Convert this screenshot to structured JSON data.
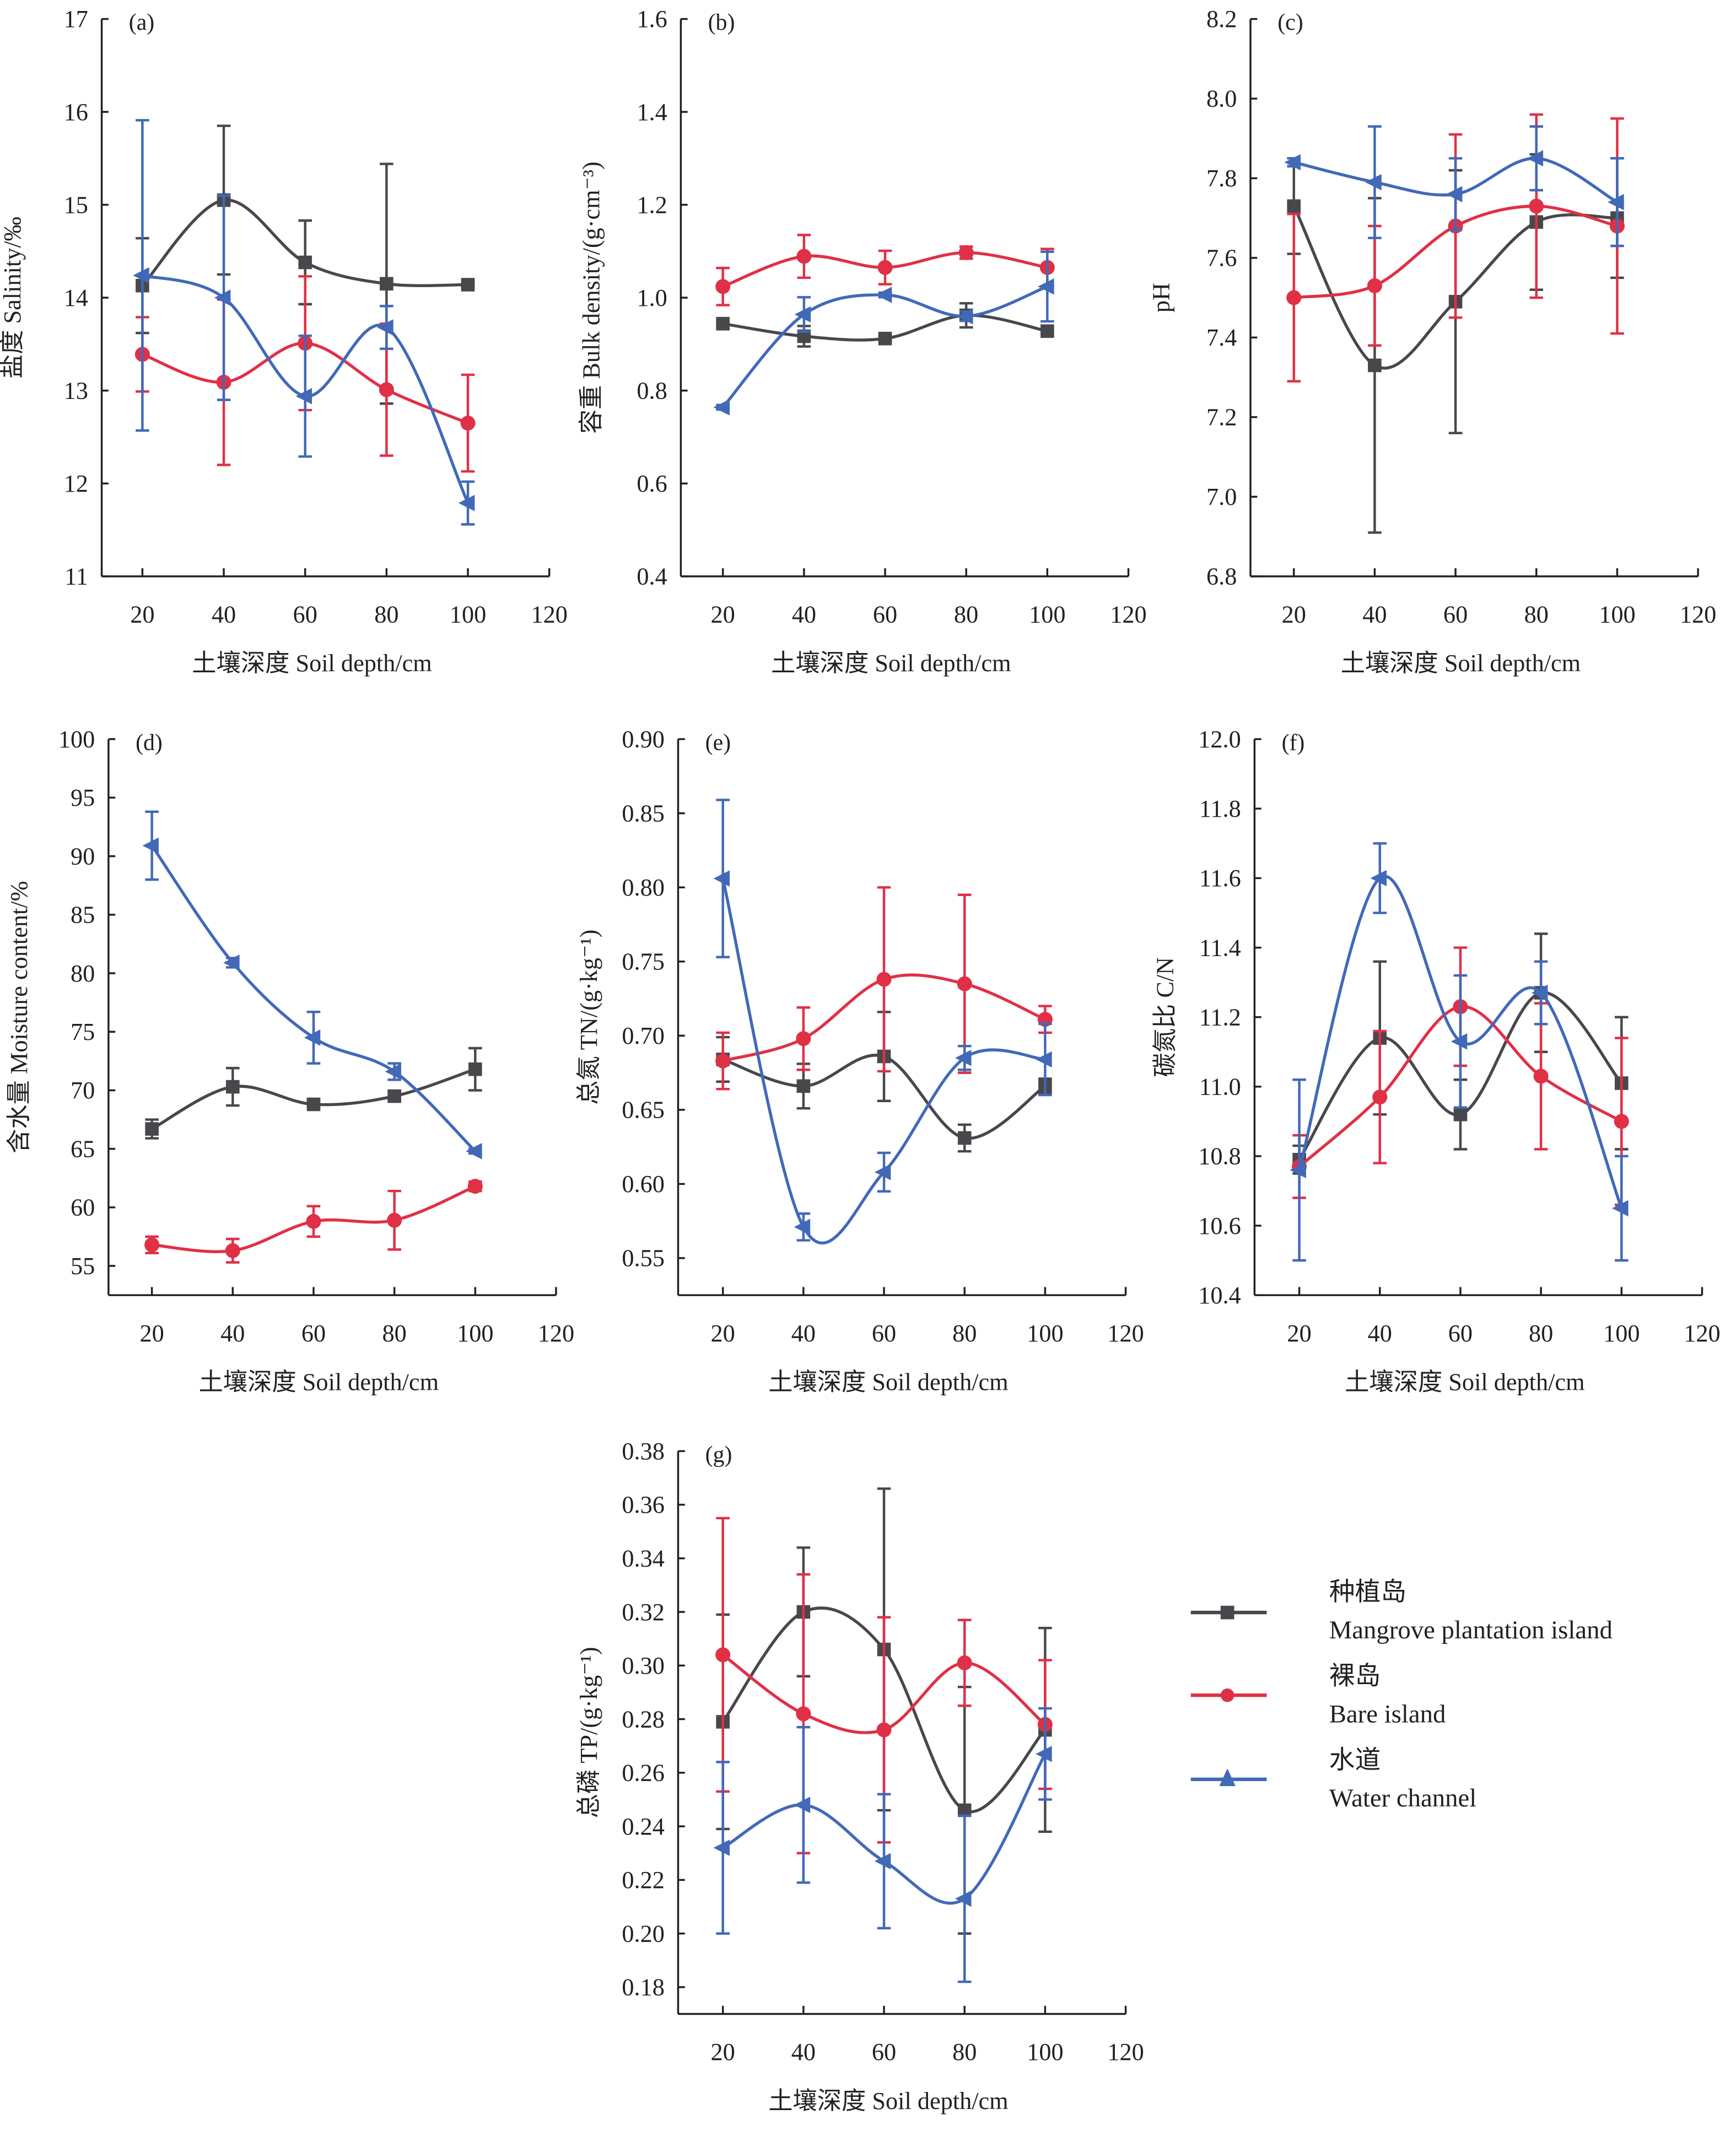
{
  "figure": {
    "x_axis_title": "土壤深度 Soil depth/cm",
    "x_ticks": [
      20,
      40,
      60,
      80,
      100,
      120
    ],
    "legend": [
      {
        "zh": "种植岛",
        "en": "Mangrove plantation island",
        "color": "#48484c",
        "marker": "square"
      },
      {
        "zh": "裸岛",
        "en": "Bare island",
        "color": "#e03046",
        "marker": "circle"
      },
      {
        "zh": "水道",
        "en": "Water channel",
        "color": "#4169b8",
        "marker": "triangle"
      }
    ]
  },
  "chart_data": [
    {
      "type": "line",
      "panel": "(a)",
      "ylabel": "盐度 Salinity/‰",
      "xlabel": "土壤深度 Soil depth/cm",
      "x": [
        20,
        40,
        60,
        80,
        100
      ],
      "xlim": [
        10,
        120
      ],
      "ylim": [
        11,
        17
      ],
      "yticks": [
        "11",
        "12",
        "13",
        "14",
        "15",
        "16",
        "17"
      ],
      "ytick_values": [
        11,
        12,
        13,
        14,
        15,
        16,
        17
      ],
      "series": [
        {
          "name": "Mangrove plantation island",
          "values": [
            14.13,
            15.05,
            14.38,
            14.15,
            14.14
          ],
          "errors": [
            0.51,
            0.8,
            0.45,
            1.29,
            0.03
          ]
        },
        {
          "name": "Bare island",
          "values": [
            13.39,
            13.09,
            13.51,
            13.01,
            12.65
          ],
          "errors": [
            0.4,
            0.89,
            0.72,
            0.71,
            0.52
          ]
        },
        {
          "name": "Water channel",
          "values": [
            14.24,
            14.0,
            12.94,
            13.68,
            11.79
          ],
          "errors": [
            1.67,
            1.1,
            0.65,
            0.23,
            0.23
          ]
        }
      ]
    },
    {
      "type": "line",
      "panel": "(b)",
      "ylabel": "容重 Bulk density/(g·cm⁻³)",
      "xlabel": "土壤深度 Soil depth/cm",
      "x": [
        20,
        40,
        60,
        80,
        100
      ],
      "xlim": [
        10,
        120
      ],
      "ylim": [
        0.4,
        1.6
      ],
      "yticks": [
        "0.4",
        "0.6",
        "0.8",
        "1.0",
        "1.2",
        "1.4",
        "1.6"
      ],
      "ytick_values": [
        0.4,
        0.6,
        0.8,
        1.0,
        1.2,
        1.4,
        1.6
      ],
      "series": [
        {
          "name": "Mangrove plantation island",
          "values": [
            0.944,
            0.917,
            0.912,
            0.962,
            0.928
          ],
          "errors": [
            0.005,
            0.022,
            0.005,
            0.026,
            0.005
          ]
        },
        {
          "name": "Bare island",
          "values": [
            1.024,
            1.089,
            1.065,
            1.097,
            1.065
          ],
          "errors": [
            0.04,
            0.046,
            0.036,
            0.013,
            0.04
          ]
        },
        {
          "name": "Water channel",
          "values": [
            0.764,
            0.964,
            1.006,
            0.96,
            1.024
          ],
          "errors": [
            0.005,
            0.037,
            0.005,
            0.01,
            0.075
          ]
        }
      ]
    },
    {
      "type": "line",
      "panel": "(c)",
      "ylabel": "pH",
      "xlabel": "土壤深度 Soil depth/cm",
      "x": [
        20,
        40,
        60,
        80,
        100
      ],
      "xlim": [
        10,
        120
      ],
      "ylim": [
        6.8,
        8.2
      ],
      "yticks": [
        "6.8",
        "7.0",
        "7.2",
        "7.4",
        "7.6",
        "7.8",
        "8.0",
        "8.2"
      ],
      "ytick_values": [
        6.8,
        7.0,
        7.2,
        7.4,
        7.6,
        7.8,
        8.0,
        8.2
      ],
      "series": [
        {
          "name": "Mangrove plantation island",
          "values": [
            7.73,
            7.33,
            7.49,
            7.69,
            7.7
          ],
          "errors": [
            0.12,
            0.42,
            0.33,
            0.17,
            0.15
          ]
        },
        {
          "name": "Bare island",
          "values": [
            7.5,
            7.53,
            7.68,
            7.73,
            7.68
          ],
          "errors": [
            0.21,
            0.15,
            0.23,
            0.23,
            0.27
          ]
        },
        {
          "name": "Water channel",
          "values": [
            7.84,
            7.79,
            7.76,
            7.85,
            7.74
          ],
          "errors": [
            0.01,
            0.14,
            0.09,
            0.08,
            0.11
          ]
        }
      ]
    },
    {
      "type": "line",
      "panel": "(d)",
      "ylabel": "含水量 Moisture content/%",
      "xlabel": "土壤深度 Soil depth/cm",
      "x": [
        20,
        40,
        60,
        80,
        100
      ],
      "xlim": [
        10,
        120
      ],
      "ylim": [
        52.5,
        100
      ],
      "yticks": [
        "55",
        "60",
        "65",
        "70",
        "75",
        "80",
        "85",
        "90",
        "95",
        "100"
      ],
      "ytick_values": [
        55,
        60,
        65,
        70,
        75,
        80,
        85,
        90,
        95,
        100
      ],
      "series": [
        {
          "name": "Mangrove plantation island",
          "values": [
            66.7,
            70.3,
            68.8,
            69.5,
            71.8
          ],
          "errors": [
            0.8,
            1.6,
            0.3,
            0.3,
            1.8
          ]
        },
        {
          "name": "Bare island",
          "values": [
            56.8,
            56.3,
            58.8,
            58.9,
            61.8
          ],
          "errors": [
            0.7,
            1.0,
            1.3,
            2.5,
            0.4
          ]
        },
        {
          "name": "Water channel",
          "values": [
            90.9,
            80.9,
            74.5,
            71.6,
            64.8
          ],
          "errors": [
            2.9,
            0.4,
            2.2,
            0.7,
            0.2
          ]
        }
      ]
    },
    {
      "type": "line",
      "panel": "(e)",
      "ylabel": "总氮 TN/(g·kg⁻¹)",
      "xlabel": "土壤深度 Soil depth/cm",
      "x": [
        20,
        40,
        60,
        80,
        100
      ],
      "xlim": [
        10,
        120
      ],
      "ylim": [
        0.525,
        0.9
      ],
      "yticks": [
        "0.55",
        "0.60",
        "0.65",
        "0.70",
        "0.75",
        "0.80",
        "0.85",
        "0.90"
      ],
      "ytick_values": [
        0.55,
        0.6,
        0.65,
        0.7,
        0.75,
        0.8,
        0.85,
        0.9
      ],
      "series": [
        {
          "name": "Mangrove plantation island",
          "values": [
            0.684,
            0.666,
            0.686,
            0.631,
            0.666
          ],
          "errors": [
            0.015,
            0.015,
            0.03,
            0.009,
            0.005
          ]
        },
        {
          "name": "Bare island",
          "values": [
            0.683,
            0.698,
            0.738,
            0.735,
            0.711
          ],
          "errors": [
            0.019,
            0.021,
            0.062,
            0.06,
            0.009
          ]
        },
        {
          "name": "Water channel",
          "values": [
            0.806,
            0.571,
            0.608,
            0.685,
            0.684
          ],
          "errors": [
            0.053,
            0.009,
            0.013,
            0.008,
            0.024
          ]
        }
      ]
    },
    {
      "type": "line",
      "panel": "(f)",
      "ylabel": "碳氮比 C/N",
      "xlabel": "土壤深度 Soil depth/cm",
      "x": [
        20,
        40,
        60,
        80,
        100
      ],
      "xlim": [
        10,
        120
      ],
      "ylim": [
        10.4,
        12.0
      ],
      "yticks": [
        "10.4",
        "10.6",
        "10.8",
        "11.0",
        "11.2",
        "11.4",
        "11.6",
        "11.8",
        "12.0"
      ],
      "ytick_values": [
        10.4,
        10.6,
        10.8,
        11.0,
        11.2,
        11.4,
        11.6,
        11.8,
        12.0
      ],
      "series": [
        {
          "name": "Mangrove plantation island",
          "values": [
            10.79,
            11.14,
            10.92,
            11.27,
            11.01
          ],
          "errors": [
            0.04,
            0.22,
            0.1,
            0.17,
            0.19
          ]
        },
        {
          "name": "Bare island",
          "values": [
            10.77,
            10.97,
            11.23,
            11.03,
            10.9
          ],
          "errors": [
            0.09,
            0.19,
            0.17,
            0.21,
            0.24
          ]
        },
        {
          "name": "Water channel",
          "values": [
            10.76,
            11.6,
            11.13,
            11.27,
            10.65
          ],
          "errors": [
            0.26,
            0.1,
            0.19,
            0.09,
            0.15
          ]
        }
      ]
    },
    {
      "type": "line",
      "panel": "(g)",
      "ylabel": "总磷 TP/(g·kg⁻¹)",
      "xlabel": "土壤深度 Soil depth/cm",
      "x": [
        20,
        40,
        60,
        80,
        100
      ],
      "xlim": [
        10,
        120
      ],
      "ylim": [
        0.17,
        0.38
      ],
      "yticks": [
        "0.18",
        "0.20",
        "0.22",
        "0.24",
        "0.26",
        "0.28",
        "0.30",
        "0.32",
        "0.34",
        "0.36",
        "0.38"
      ],
      "ytick_values": [
        0.18,
        0.2,
        0.22,
        0.24,
        0.26,
        0.28,
        0.3,
        0.32,
        0.34,
        0.36,
        0.38
      ],
      "series": [
        {
          "name": "Mangrove plantation island",
          "values": [
            0.279,
            0.32,
            0.306,
            0.246,
            0.276
          ],
          "errors": [
            0.04,
            0.024,
            0.06,
            0.046,
            0.038
          ]
        },
        {
          "name": "Bare island",
          "values": [
            0.304,
            0.282,
            0.276,
            0.301,
            0.278
          ],
          "errors": [
            0.051,
            0.052,
            0.042,
            0.016,
            0.024
          ]
        },
        {
          "name": "Water channel",
          "values": [
            0.232,
            0.248,
            0.227,
            0.213,
            0.267
          ],
          "errors": [
            0.032,
            0.029,
            0.025,
            0.031,
            0.017
          ]
        }
      ]
    }
  ]
}
